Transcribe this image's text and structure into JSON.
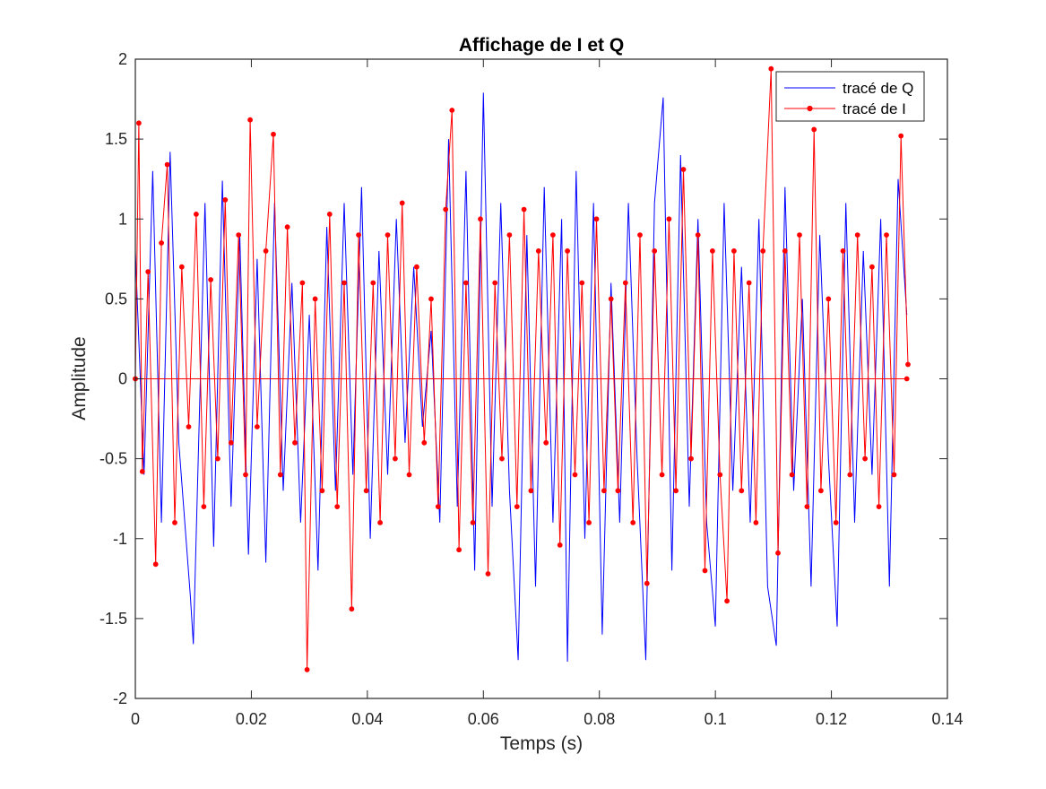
{
  "chart_data": {
    "type": "line",
    "title": "Affichage de I et Q",
    "xlabel": "Temps (s)",
    "ylabel": "Amplitude",
    "xlim": [
      0,
      0.14
    ],
    "ylim": [
      -2,
      2
    ],
    "xticks": [
      0,
      0.02,
      0.04,
      0.06,
      0.08,
      0.1,
      0.12,
      0.14
    ],
    "xtick_labels": [
      "0",
      "0.02",
      "0.04",
      "0.06",
      "0.08",
      "0.1",
      "0.12",
      "0.14"
    ],
    "yticks": [
      -2,
      -1.5,
      -1,
      -0.5,
      0,
      0.5,
      1,
      1.5,
      2
    ],
    "ytick_labels": [
      "-2",
      "-1.5",
      "-1",
      "-0.5",
      "0",
      "0.5",
      "1",
      "1.5",
      "2"
    ],
    "grid": false,
    "legend_position": "top-right",
    "series": [
      {
        "name": "tracé de Q",
        "color": "#0000ff",
        "marker": "none",
        "x": [
          0.0,
          0.0015,
          0.003,
          0.0045,
          0.006,
          0.0075,
          0.0095,
          0.01,
          0.012,
          0.0135,
          0.015,
          0.0165,
          0.018,
          0.0195,
          0.021,
          0.0225,
          0.024,
          0.0255,
          0.027,
          0.0285,
          0.03,
          0.0315,
          0.033,
          0.0345,
          0.036,
          0.0375,
          0.039,
          0.0405,
          0.042,
          0.0435,
          0.045,
          0.0465,
          0.048,
          0.0495,
          0.051,
          0.0525,
          0.054,
          0.0555,
          0.057,
          0.0585,
          0.06,
          0.0615,
          0.063,
          0.0645,
          0.066,
          0.0675,
          0.069,
          0.0705,
          0.072,
          0.0735,
          0.0745,
          0.076,
          0.0775,
          0.079,
          0.0805,
          0.082,
          0.0835,
          0.085,
          0.0865,
          0.088,
          0.0895,
          0.091,
          0.0925,
          0.094,
          0.0955,
          0.097,
          0.0985,
          0.1,
          0.1015,
          0.103,
          0.1045,
          0.106,
          0.1075,
          0.109,
          0.1105,
          0.112,
          0.1135,
          0.115,
          0.1165,
          0.118,
          0.1195,
          0.121,
          0.1225,
          0.124,
          0.1255,
          0.127,
          0.1285,
          0.13,
          0.1315,
          0.133
        ],
        "y": [
          0.8,
          -0.6,
          1.3,
          -0.9,
          1.42,
          -0.4,
          -1.37,
          -1.66,
          1.1,
          -1.05,
          1.24,
          -0.8,
          0.9,
          -1.1,
          0.75,
          -1.15,
          1.1,
          -0.7,
          0.6,
          -0.9,
          0.4,
          -1.2,
          0.95,
          -0.7,
          1.1,
          -0.6,
          1.2,
          -1.0,
          0.8,
          -0.6,
          1.0,
          -0.4,
          0.7,
          -0.3,
          0.3,
          -0.9,
          1.5,
          -0.8,
          1.3,
          -1.2,
          1.79,
          -0.8,
          1.1,
          -0.7,
          -1.76,
          0.9,
          -1.3,
          1.2,
          -0.9,
          1.0,
          -1.77,
          1.3,
          -1.0,
          1.1,
          -1.6,
          0.6,
          -0.9,
          1.1,
          -0.5,
          -1.76,
          1.1,
          1.76,
          -1.2,
          1.4,
          -0.8,
          1.0,
          -0.9,
          -1.55,
          1.1,
          -0.7,
          0.7,
          -0.9,
          1.0,
          -1.3,
          -1.67,
          1.2,
          -0.7,
          0.5,
          -1.3,
          0.9,
          -0.5,
          -1.55,
          1.1,
          -0.9,
          0.8,
          -0.6,
          1.0,
          -1.3,
          1.25,
          0.4
        ]
      },
      {
        "name": "tracé de I",
        "color": "#ff0000",
        "marker": "o",
        "x": [
          0.0,
          0.0006,
          0.0012,
          0.0022,
          0.0035,
          0.0045,
          0.0055,
          0.0068,
          0.008,
          0.0092,
          0.0105,
          0.0118,
          0.013,
          0.0142,
          0.0155,
          0.0165,
          0.0178,
          0.019,
          0.0198,
          0.021,
          0.0225,
          0.0238,
          0.025,
          0.0262,
          0.0275,
          0.0288,
          0.0296,
          0.031,
          0.0322,
          0.0335,
          0.0348,
          0.036,
          0.0373,
          0.0385,
          0.0398,
          0.041,
          0.0422,
          0.0435,
          0.0448,
          0.046,
          0.0472,
          0.0485,
          0.0498,
          0.051,
          0.0522,
          0.0535,
          0.0546,
          0.0558,
          0.057,
          0.0582,
          0.0595,
          0.0608,
          0.062,
          0.0632,
          0.0645,
          0.0658,
          0.067,
          0.0682,
          0.0695,
          0.0708,
          0.072,
          0.0732,
          0.0745,
          0.0758,
          0.077,
          0.0782,
          0.0795,
          0.0808,
          0.082,
          0.0832,
          0.0845,
          0.0858,
          0.087,
          0.0882,
          0.0895,
          0.0908,
          0.092,
          0.0932,
          0.0945,
          0.0958,
          0.097,
          0.0982,
          0.0995,
          0.1008,
          0.102,
          0.1032,
          0.1045,
          0.1058,
          0.107,
          0.1082,
          0.1096,
          0.1108,
          0.112,
          0.1132,
          0.1145,
          0.1158,
          0.117,
          0.1182,
          0.1195,
          0.1208,
          0.122,
          0.1232,
          0.1245,
          0.1258,
          0.127,
          0.1282,
          0.1295,
          0.1308,
          0.132,
          0.1332
        ],
        "y": [
          0.0,
          1.6,
          -0.58,
          0.67,
          -1.16,
          0.85,
          1.34,
          -0.9,
          0.7,
          -0.3,
          1.03,
          -0.8,
          0.62,
          -0.5,
          1.12,
          -0.4,
          0.9,
          -0.6,
          1.62,
          -0.3,
          0.8,
          1.53,
          -0.6,
          0.95,
          -0.4,
          0.6,
          -1.82,
          0.5,
          -0.7,
          1.03,
          -0.8,
          0.6,
          -1.44,
          0.9,
          -0.7,
          0.6,
          -0.9,
          0.9,
          -0.5,
          1.1,
          -0.6,
          0.7,
          -0.4,
          0.5,
          -0.8,
          1.06,
          1.68,
          -1.07,
          0.6,
          -0.9,
          1.0,
          -1.22,
          0.6,
          -0.5,
          0.9,
          -0.8,
          1.06,
          -0.7,
          0.8,
          -0.4,
          0.9,
          -1.04,
          0.8,
          -0.6,
          0.6,
          -0.9,
          1.0,
          -0.7,
          0.5,
          -0.7,
          0.6,
          -0.9,
          0.9,
          -1.28,
          0.8,
          -0.6,
          1.0,
          -0.7,
          1.31,
          -0.5,
          0.9,
          -1.2,
          0.8,
          -0.6,
          -1.39,
          0.8,
          -0.7,
          0.6,
          -0.9,
          0.8,
          1.94,
          -1.09,
          0.8,
          -0.6,
          0.9,
          -0.8,
          1.56,
          -0.7,
          0.5,
          -0.9,
          0.8,
          -0.6,
          0.9,
          -0.5,
          0.7,
          -0.8,
          0.9,
          -0.6,
          1.52,
          0.09
        ]
      },
      {
        "name": "",
        "color": "#ff0000",
        "marker": "o",
        "x": [
          0.0,
          0.133
        ],
        "y": [
          0.0,
          0.0
        ]
      }
    ]
  }
}
